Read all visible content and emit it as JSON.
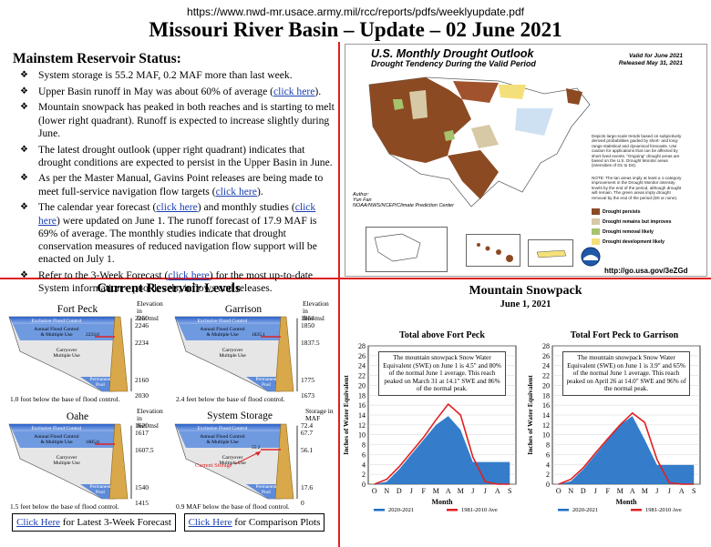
{
  "header": {
    "url": "https://www.nwd-mr.usace.army.mil/rcc/reports/pdfs/weeklyupdate.pdf",
    "title": "Missouri River Basin – Update – 02 June 2021"
  },
  "status": {
    "heading": "Mainstem Reservoir Status:",
    "bullets": [
      {
        "text": "System storage is 55.2 MAF, 0.2 MAF more than last week."
      },
      {
        "pre": "Upper Basin runoff in May was about 60% of average (",
        "link": "click here",
        "post": ")."
      },
      {
        "text": "Mountain snowpack has peaked in both reaches and is starting to melt (lower right quadrant).  Runoff is expected to increase slightly during June."
      },
      {
        "text": "The latest drought outlook (upper right quadrant) indicates that drought conditions are expected to persist in the Upper Basin in June."
      },
      {
        "pre": "As per the Master Manual, Gavins Point releases are being made to meet full-service navigation flow targets (",
        "link": "click here",
        "post": ")."
      },
      {
        "pre": "The calendar year forecast (",
        "link": "click here",
        "mid": ") and monthly studies (",
        "link2": "click here",
        "post": ") were updated on June 1. The runoff forecast of 17.9 MAF is 69% of average. The monthly studies indicate that drought conservation measures of reduced navigation flow support will be enacted on July 1."
      },
      {
        "pre": "Refer to the 3-Week Forecast (",
        "link": "click here",
        "post": ") for the most up-to-date System information – pool levels, inflows and releases."
      }
    ]
  },
  "drought": {
    "title": "U.S. Monthly Drought Outlook",
    "subtitle": "Drought Tendency During the Valid Period",
    "valid": "Valid for June 2021",
    "released": "Released May 31, 2021",
    "note1": "Depicts large-scale trends based on subjectively derived probabilities guided by short- and long-range statistical and dynamical forecasts. Use caution for applications that can be affected by short lived events. \"Ongoing\" drought areas are based on the U.S. Drought Monitor areas (intensities of D1 to D4).",
    "note2": "NOTE: The tan areas imply at least a 1-category improvement in the Drought Monitor intensity levels by the end of the period, although drought will remain. The green areas imply drought removal by the end of the period (D0 or none).",
    "author_label": "Author:",
    "author": "Yun Fan",
    "agency": "NOAA/NWS/NCEP/Climate Prediction Center",
    "legend": [
      {
        "label": "Drought persists",
        "color": "#8b4a22"
      },
      {
        "label": "Drought remains but improves",
        "color": "#d7c9a6"
      },
      {
        "label": "Drought removal likely",
        "color": "#a7c26d"
      },
      {
        "label": "Drought development likely",
        "color": "#f4e07a"
      }
    ],
    "link": "http://go.usa.gov/3eZGd"
  },
  "reservoirs": {
    "title": "Current Reservoir Levels",
    "zone_flood": "Exclusive Flood Control",
    "zone_annual1": "Annual Flood Control",
    "zone_annual2": "& Multiple Use",
    "zone_carry1": "Carryover",
    "zone_carry2": "Multiple Use",
    "zone_perm1": "Permanent",
    "zone_perm2": "Pool",
    "items": [
      {
        "name": "Fort Peck",
        "axis1": "Elevation in",
        "axis2": "feet msl",
        "ticks": [
          "2250",
          "2246",
          "2234",
          "2160",
          "2030"
        ],
        "current": "2233.0",
        "note": "1.0 foot below the base of flood control."
      },
      {
        "name": "Garrison",
        "axis1": "Elevation in",
        "axis2": "feet msl",
        "ticks": [
          "1854",
          "1850",
          "1837.5",
          "1775",
          "1673"
        ],
        "current": "1835.1",
        "note": "2.4 feet below the base of flood control."
      },
      {
        "name": "Oahe",
        "axis1": "Elevation in",
        "axis2": "feet msl",
        "ticks": [
          "1620",
          "1617",
          "1607.5",
          "1540",
          "1415"
        ],
        "current": "1605.6",
        "note": "1.5 feet below the base of flood control."
      },
      {
        "name": "System Storage",
        "axis1": "Storage in",
        "axis2": "MAF",
        "ticks": [
          "72.4",
          "67.7",
          "56.1",
          "17.6",
          "0"
        ],
        "current": "55.2",
        "note": "0.9 MAF below the base of flood control.",
        "current_label": "Current Storage"
      }
    ],
    "btn1_link": "Click Here",
    "btn1_text": " for Latest 3-Week Forecast",
    "btn2_link": "Click Here",
    "btn2_text": " for Comparison Plots"
  },
  "snowpack": {
    "title": "Mountain Snowpack",
    "date": "June 1, 2021",
    "charts": [
      {
        "title": "Total above Fort Peck",
        "desc": "The mountain snowpack Snow Water Equivalent (SWE) on June 1 is 4.5\" and 80% of the normal June 1 average.  This reach peaked on March 31 at 14.1\" SWE and 86% of the normal peak."
      },
      {
        "title": "Total Fort Peck to Garrison",
        "desc": "The mountain snowpack Snow Water Equivalent (SWE) on June 1 is 3.9\" and 65% of the normal June 1 average.  This reach peaked on April 26 at 14.0\" SWE and 96% of the normal peak."
      }
    ],
    "ylabel": "Inches of Water Equivalent",
    "xlabel": "Month",
    "legend_current": "2020-2021",
    "legend_avg": "1981-2010 Ave"
  },
  "chart_data": [
    {
      "type": "area",
      "title": "Total above Fort Peck",
      "xlabel": "Month",
      "ylabel": "Inches of Water Equivalent",
      "x": [
        "O",
        "N",
        "D",
        "J",
        "F",
        "M",
        "A",
        "M",
        "J",
        "J",
        "A",
        "S"
      ],
      "ylim": [
        0,
        28
      ],
      "yticks": [
        0,
        2,
        4,
        6,
        8,
        10,
        12,
        14,
        16,
        18,
        20,
        22,
        24,
        26,
        28
      ],
      "series": [
        {
          "name": "2020-2021",
          "values": [
            0,
            0.5,
            3,
            6,
            9,
            12,
            13.8,
            11,
            4.5,
            4.5,
            4.5,
            4.5
          ]
        },
        {
          "name": "1981-2010 Ave",
          "values": [
            0,
            1,
            3.5,
            6.5,
            9.5,
            13,
            16.2,
            14,
            5.5,
            0.5,
            0,
            0
          ]
        }
      ]
    },
    {
      "type": "area",
      "title": "Total Fort Peck to Garrison",
      "xlabel": "Month",
      "ylabel": "Inches of Water Equivalent",
      "x": [
        "O",
        "N",
        "D",
        "J",
        "F",
        "M",
        "A",
        "M",
        "J",
        "J",
        "A",
        "S"
      ],
      "ylim": [
        0,
        28
      ],
      "yticks": [
        0,
        2,
        4,
        6,
        8,
        10,
        12,
        14,
        16,
        18,
        20,
        22,
        24,
        26,
        28
      ],
      "series": [
        {
          "name": "2020-2021",
          "values": [
            0,
            0.6,
            3,
            6,
            9,
            12,
            13.8,
            9,
            3.9,
            3.9,
            3.9,
            3.9
          ]
        },
        {
          "name": "1981-2010 Ave",
          "values": [
            0,
            1,
            3.3,
            6.3,
            9.2,
            12,
            14.4,
            12.5,
            5,
            0.3,
            0,
            0
          ]
        }
      ]
    }
  ]
}
